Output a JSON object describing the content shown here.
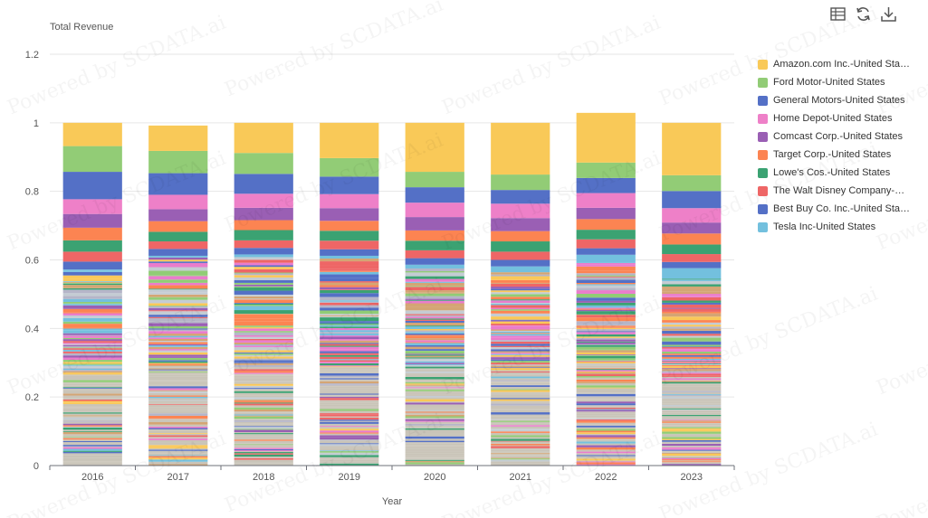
{
  "toolbar": {
    "icons": [
      "data-view-icon",
      "restore-icon",
      "download-icon"
    ]
  },
  "watermark": "Powered by SCDATA.ai",
  "chart_data": {
    "type": "bar",
    "stacked": true,
    "title": "",
    "ylabel": "Total Revenue",
    "xlabel": "Year",
    "ylim": [
      0,
      1.2
    ],
    "yticks": [
      "0",
      "0.2",
      "0.4",
      "0.6",
      "0.8",
      "1",
      "1.2"
    ],
    "categories": [
      "2016",
      "2017",
      "2018",
      "2019",
      "2020",
      "2021",
      "2022",
      "2023"
    ],
    "grid": true,
    "legend_position": "right",
    "series": [
      {
        "name": "Amazon.com Inc.-United States",
        "color": "#f9c958",
        "values": [
          0.068,
          0.074,
          0.088,
          0.103,
          0.143,
          0.151,
          0.145,
          0.153
        ]
      },
      {
        "name": "Ford Motor-United States",
        "color": "#92cc76",
        "values": [
          0.075,
          0.065,
          0.061,
          0.054,
          0.045,
          0.045,
          0.045,
          0.046
        ]
      },
      {
        "name": "General Motors-United States",
        "color": "#5470c6",
        "values": [
          0.08,
          0.063,
          0.058,
          0.051,
          0.045,
          0.04,
          0.044,
          0.05
        ]
      },
      {
        "name": "Home Depot-United States",
        "color": "#ee80c8",
        "values": [
          0.043,
          0.042,
          0.041,
          0.041,
          0.042,
          0.042,
          0.043,
          0.042
        ]
      },
      {
        "name": "Comcast Corp.-United States",
        "color": "#9a5fb4",
        "values": [
          0.04,
          0.035,
          0.036,
          0.037,
          0.039,
          0.038,
          0.033,
          0.032
        ]
      },
      {
        "name": "Target Corp.-United States",
        "color": "#fc8452",
        "values": [
          0.037,
          0.031,
          0.029,
          0.029,
          0.03,
          0.03,
          0.031,
          0.032
        ]
      },
      {
        "name": "Lowe's Cos.-United States",
        "color": "#3ba272",
        "values": [
          0.033,
          0.028,
          0.03,
          0.029,
          0.028,
          0.03,
          0.028,
          0.028
        ]
      },
      {
        "name": "The Walt Disney Company-United States",
        "color": "#ee6666",
        "values": [
          0.029,
          0.022,
          0.022,
          0.025,
          0.023,
          0.024,
          0.026,
          0.023
        ]
      },
      {
        "name": "Best Buy Co. Inc.-United States",
        "color": "#5470c6",
        "values": [
          0.023,
          0.02,
          0.019,
          0.019,
          0.019,
          0.019,
          0.019,
          0.018
        ]
      },
      {
        "name": "Tesla Inc-United States",
        "color": "#73c0de",
        "values": [
          0.004,
          0.005,
          0.008,
          0.008,
          0.011,
          0.017,
          0.024,
          0.031
        ]
      }
    ],
    "other_small_series_totals": [
      0.568,
      0.607,
      0.608,
      0.604,
      0.575,
      0.564,
      0.591,
      0.545
    ]
  }
}
